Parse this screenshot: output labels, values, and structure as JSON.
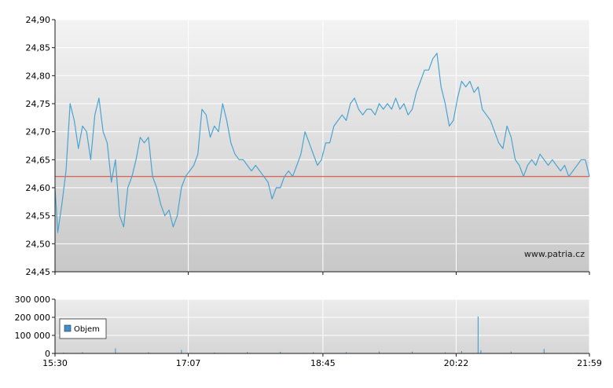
{
  "watermark": "www.patria.cz",
  "colors": {
    "price_line": "#4aa3d0",
    "reference_line": "#d9402b",
    "volume_bar": "#4aa3d0",
    "legend_swatch": "#3f8fd0",
    "grid": "#ffffff",
    "axis": "#1a1a1a"
  },
  "chart_data": [
    {
      "type": "line",
      "name": "price",
      "title": "",
      "xlabel": "",
      "ylabel": "",
      "x_ticks": [
        "15:30",
        "17:07",
        "18:45",
        "20:22",
        "21:59"
      ],
      "xlim": [
        "15:30",
        "21:59"
      ],
      "y_ticks": [
        "24,90",
        "24,85",
        "24,80",
        "24,75",
        "24,70",
        "24,65",
        "24,60",
        "24,55",
        "24,50",
        "24,45"
      ],
      "ylim": [
        24.45,
        24.9
      ],
      "reference_line": 24.62,
      "grid": true,
      "series": [
        {
          "x": [
            "15:30",
            "15:32",
            "15:35",
            "15:38",
            "15:41",
            "15:44",
            "15:47",
            "15:50",
            "15:53",
            "15:56",
            "15:59",
            "16:02",
            "16:05",
            "16:08",
            "16:11",
            "16:14",
            "16:17",
            "16:20",
            "16:23",
            "16:26",
            "16:29",
            "16:32",
            "16:35",
            "16:38",
            "16:41",
            "16:44",
            "16:47",
            "16:50",
            "16:53",
            "16:56",
            "16:59",
            "17:02",
            "17:05",
            "17:08",
            "17:11",
            "17:14",
            "17:17",
            "17:20",
            "17:23",
            "17:26",
            "17:29",
            "17:32",
            "17:35",
            "17:38",
            "17:41",
            "17:44",
            "17:47",
            "17:50",
            "17:53",
            "17:56",
            "17:59",
            "18:02",
            "18:05",
            "18:08",
            "18:11",
            "18:14",
            "18:17",
            "18:20",
            "18:23",
            "18:26",
            "18:29",
            "18:32",
            "18:35",
            "18:38",
            "18:41",
            "18:44",
            "18:47",
            "18:50",
            "18:53",
            "18:56",
            "18:59",
            "19:02",
            "19:05",
            "19:08",
            "19:11",
            "19:14",
            "19:17",
            "19:20",
            "19:23",
            "19:26",
            "19:29",
            "19:32",
            "19:35",
            "19:38",
            "19:41",
            "19:44",
            "19:47",
            "19:50",
            "19:53",
            "19:56",
            "19:59",
            "20:02",
            "20:05",
            "20:08",
            "20:11",
            "20:14",
            "20:17",
            "20:20",
            "20:23",
            "20:26",
            "20:29",
            "20:32",
            "20:35",
            "20:38",
            "20:41",
            "20:44",
            "20:47",
            "20:50",
            "20:53",
            "20:56",
            "20:59",
            "21:02",
            "21:05",
            "21:08",
            "21:11",
            "21:14",
            "21:17",
            "21:20",
            "21:23",
            "21:26",
            "21:29",
            "21:32",
            "21:35",
            "21:38",
            "21:41",
            "21:44",
            "21:47",
            "21:50",
            "21:53",
            "21:56",
            "21:59"
          ],
          "y": [
            24.6,
            24.52,
            24.57,
            24.63,
            24.75,
            24.72,
            24.67,
            24.71,
            24.7,
            24.65,
            24.73,
            24.76,
            24.7,
            24.68,
            24.61,
            24.65,
            24.55,
            24.53,
            24.6,
            24.62,
            24.65,
            24.69,
            24.68,
            24.69,
            24.62,
            24.6,
            24.57,
            24.55,
            24.56,
            24.53,
            24.55,
            24.6,
            24.62,
            24.63,
            24.64,
            24.66,
            24.74,
            24.73,
            24.69,
            24.71,
            24.7,
            24.75,
            24.72,
            24.68,
            24.66,
            24.65,
            24.65,
            24.64,
            24.63,
            24.64,
            24.63,
            24.62,
            24.61,
            24.58,
            24.6,
            24.6,
            24.62,
            24.63,
            24.62,
            24.64,
            24.66,
            24.7,
            24.68,
            24.66,
            24.64,
            24.65,
            24.68,
            24.68,
            24.71,
            24.72,
            24.73,
            24.72,
            24.75,
            24.76,
            24.74,
            24.73,
            24.74,
            24.74,
            24.73,
            24.75,
            24.74,
            24.75,
            24.74,
            24.76,
            24.74,
            24.75,
            24.73,
            24.74,
            24.77,
            24.79,
            24.81,
            24.81,
            24.83,
            24.84,
            24.78,
            24.75,
            24.71,
            24.72,
            24.76,
            24.79,
            24.78,
            24.79,
            24.77,
            24.78,
            24.74,
            24.73,
            24.72,
            24.7,
            24.68,
            24.67,
            24.71,
            24.69,
            24.65,
            24.64,
            24.62,
            24.64,
            24.65,
            24.64,
            24.66,
            24.65,
            24.64,
            24.65,
            24.64,
            24.63,
            24.64,
            24.62,
            24.63,
            24.64,
            24.65,
            24.65,
            24.62
          ]
        }
      ]
    },
    {
      "type": "bar",
      "name": "volume",
      "title": "",
      "legend": [
        "Objem"
      ],
      "legend_position": "left",
      "x_ticks": [
        "15:30",
        "17:07",
        "18:45",
        "20:22",
        "21:59"
      ],
      "xlim": [
        "15:30",
        "21:59"
      ],
      "y_ticks": [
        "300 000",
        "200 000",
        "100 000",
        "0"
      ],
      "ylim": [
        0,
        300000
      ],
      "grid": true,
      "series": [
        {
          "name": "Objem",
          "x": [
            "15:36",
            "15:50",
            "16:14",
            "16:38",
            "17:02",
            "17:26",
            "17:50",
            "18:14",
            "18:38",
            "19:02",
            "19:26",
            "19:50",
            "20:14",
            "20:26",
            "20:38",
            "20:40",
            "21:02",
            "21:26",
            "21:50"
          ],
          "y": [
            4000,
            7000,
            28000,
            6000,
            20000,
            5000,
            8000,
            9000,
            7000,
            8000,
            11000,
            10000,
            6000,
            13000,
            205000,
            18000,
            10000,
            25000,
            3000
          ]
        }
      ]
    }
  ]
}
